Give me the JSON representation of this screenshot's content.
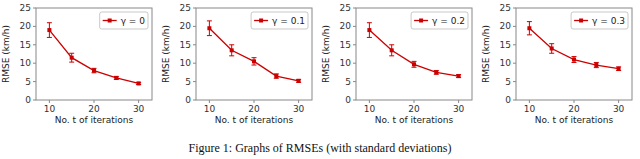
{
  "chart_data": [
    {
      "type": "line",
      "x": [
        10,
        15,
        20,
        25,
        30
      ],
      "series": [
        {
          "name": "γ = 0",
          "color": "#cc0000",
          "marker": "square",
          "values": [
            19.0,
            11.5,
            8.0,
            6.0,
            4.5
          ],
          "errors": [
            2.0,
            1.2,
            0.6,
            0.4,
            0.3
          ]
        }
      ],
      "xlabel": "No. t of iterations",
      "ylabel": "RMSE (km/h)",
      "xlim": [
        7,
        33
      ],
      "xticks": [
        10,
        20,
        30
      ],
      "ylim": [
        0,
        25
      ],
      "yticks": [
        0,
        5,
        10,
        15,
        20,
        25
      ],
      "legend": "upper right",
      "grid": false
    },
    {
      "type": "line",
      "x": [
        10,
        15,
        20,
        25,
        30
      ],
      "series": [
        {
          "name": "γ = 0.1",
          "color": "#cc0000",
          "marker": "square",
          "values": [
            19.5,
            13.5,
            10.5,
            6.5,
            5.2
          ],
          "errors": [
            2.0,
            1.5,
            1.0,
            0.6,
            0.4
          ]
        }
      ],
      "xlabel": "No. t of iterations",
      "ylabel": "RMSE (km/h)",
      "xlim": [
        7,
        33
      ],
      "xticks": [
        10,
        20,
        30
      ],
      "ylim": [
        0,
        25
      ],
      "yticks": [
        0,
        5,
        10,
        15,
        20,
        25
      ],
      "legend": "upper right",
      "grid": false
    },
    {
      "type": "line",
      "x": [
        10,
        15,
        20,
        25,
        30
      ],
      "series": [
        {
          "name": "γ = 0.2",
          "color": "#cc0000",
          "marker": "square",
          "values": [
            19.0,
            13.5,
            9.7,
            7.5,
            6.5
          ],
          "errors": [
            2.0,
            1.5,
            0.8,
            0.5,
            0.4
          ]
        }
      ],
      "xlabel": "No. t of iterations",
      "ylabel": "RMSE (km/h)",
      "xlim": [
        7,
        33
      ],
      "xticks": [
        10,
        20,
        30
      ],
      "ylim": [
        0,
        25
      ],
      "yticks": [
        0,
        5,
        10,
        15,
        20,
        25
      ],
      "legend": "upper right",
      "grid": false
    },
    {
      "type": "line",
      "x": [
        10,
        15,
        20,
        25,
        30
      ],
      "series": [
        {
          "name": "γ = 0.3",
          "color": "#cc0000",
          "marker": "square",
          "values": [
            19.5,
            14.0,
            11.0,
            9.5,
            8.5
          ],
          "errors": [
            1.8,
            1.3,
            0.8,
            0.7,
            0.5
          ]
        }
      ],
      "xlabel": "No. t of iterations",
      "ylabel": "RMSE (km/h)",
      "xlim": [
        7,
        33
      ],
      "xticks": [
        10,
        20,
        30
      ],
      "ylim": [
        0,
        25
      ],
      "yticks": [
        0,
        5,
        10,
        15,
        20,
        25
      ],
      "legend": "upper right",
      "grid": false
    }
  ],
  "caption": "Figure 1: Graphs of RMSEs (with standard deviations)"
}
